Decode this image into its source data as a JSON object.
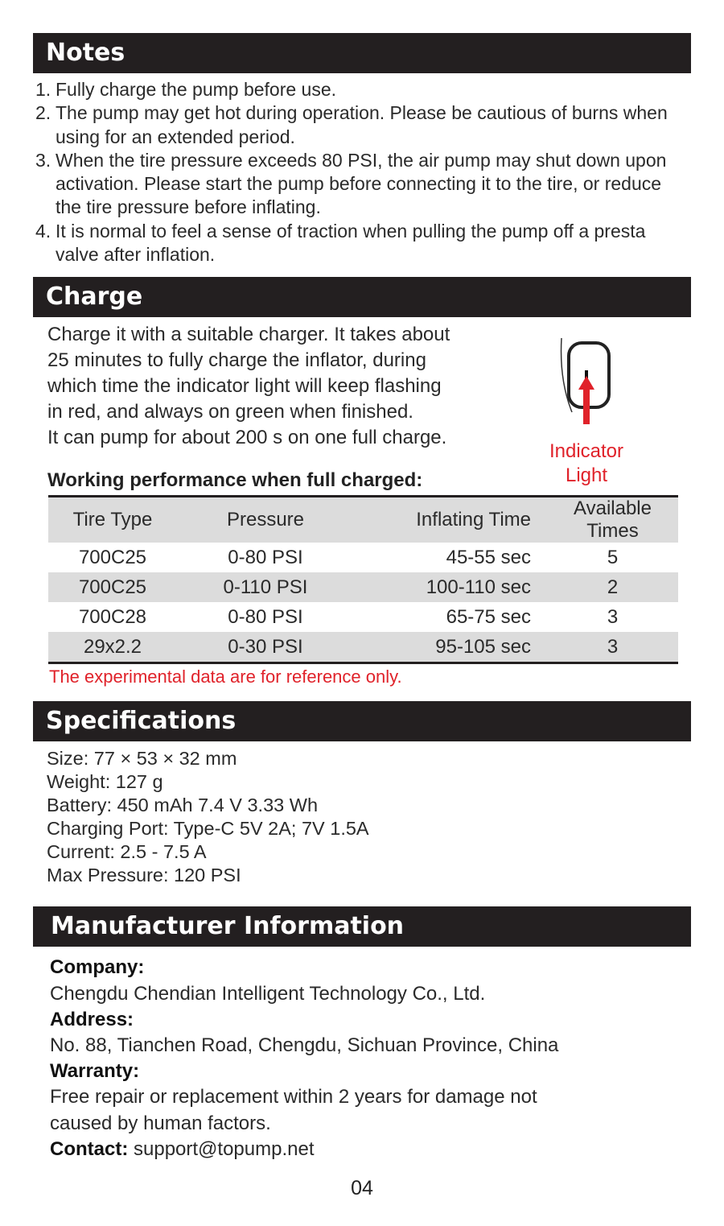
{
  "notes": {
    "title": "Notes",
    "items": [
      {
        "n": "1.",
        "text": "Fully charge the pump before use."
      },
      {
        "n": "2.",
        "text": "The pump may get hot during operation. Please be cautious of burns when using for an extended period."
      },
      {
        "n": "3.",
        "text": "When the tire pressure exceeds 80 PSI, the air pump may shut down upon activation. Please start the pump before connecting it to the tire, or reduce the tire pressure before inflating."
      },
      {
        "n": "4.",
        "text": "It is normal to feel a sense of traction when pulling the pump off a presta valve after inflation."
      }
    ]
  },
  "charge": {
    "title": "Charge",
    "lines": [
      "Charge it with a suitable charger. It takes about",
      "25 minutes to fully charge the inflator, during",
      "which time the indicator light will keep flashing",
      "in red, and always on green when finished.",
      "It can pump for about 200 s on one full charge."
    ],
    "indicator_label_1": "Indicator",
    "indicator_label_2": "Light",
    "perf_title": "Working performance when full charged:",
    "table": {
      "headers": [
        "Tire Type",
        "Pressure",
        "Inflating Time",
        "Available Times"
      ],
      "rows": [
        [
          "700C25",
          "0-80 PSI",
          "45-55 sec",
          "5"
        ],
        [
          "700C25",
          "0-110 PSI",
          "100-110 sec",
          "2"
        ],
        [
          "700C28",
          "0-80 PSI",
          "65-75 sec",
          "3"
        ],
        [
          "29x2.2",
          "0-30 PSI",
          "95-105 sec",
          "3"
        ]
      ]
    },
    "note": "The experimental data are for reference only.",
    "accent": "#e0222a"
  },
  "specs": {
    "title": "Specifications",
    "lines": [
      "Size: 77 × 53 × 32 mm",
      "Weight: 127 g",
      "Battery: 450 mAh 7.4 V 3.33 Wh",
      "Charging Port: Type-C 5V 2A; 7V 1.5A",
      "Current: 2.5 - 7.5 A",
      "Max Pressure: 120 PSI"
    ]
  },
  "manufacturer": {
    "title": "Manufacturer Information",
    "company_label": "Company:",
    "company": "Chengdu Chendian Intelligent Technology Co., Ltd.",
    "address_label": "Address:",
    "address": "No. 88, Tianchen Road, Chengdu, Sichuan Province, China",
    "warranty_label": "Warranty:",
    "warranty_1": "Free repair or replacement within 2 years for damage not",
    "warranty_2": "caused by human factors.",
    "contact_label": "Contact:",
    "contact": "support@topump.net"
  },
  "page_number": "04"
}
